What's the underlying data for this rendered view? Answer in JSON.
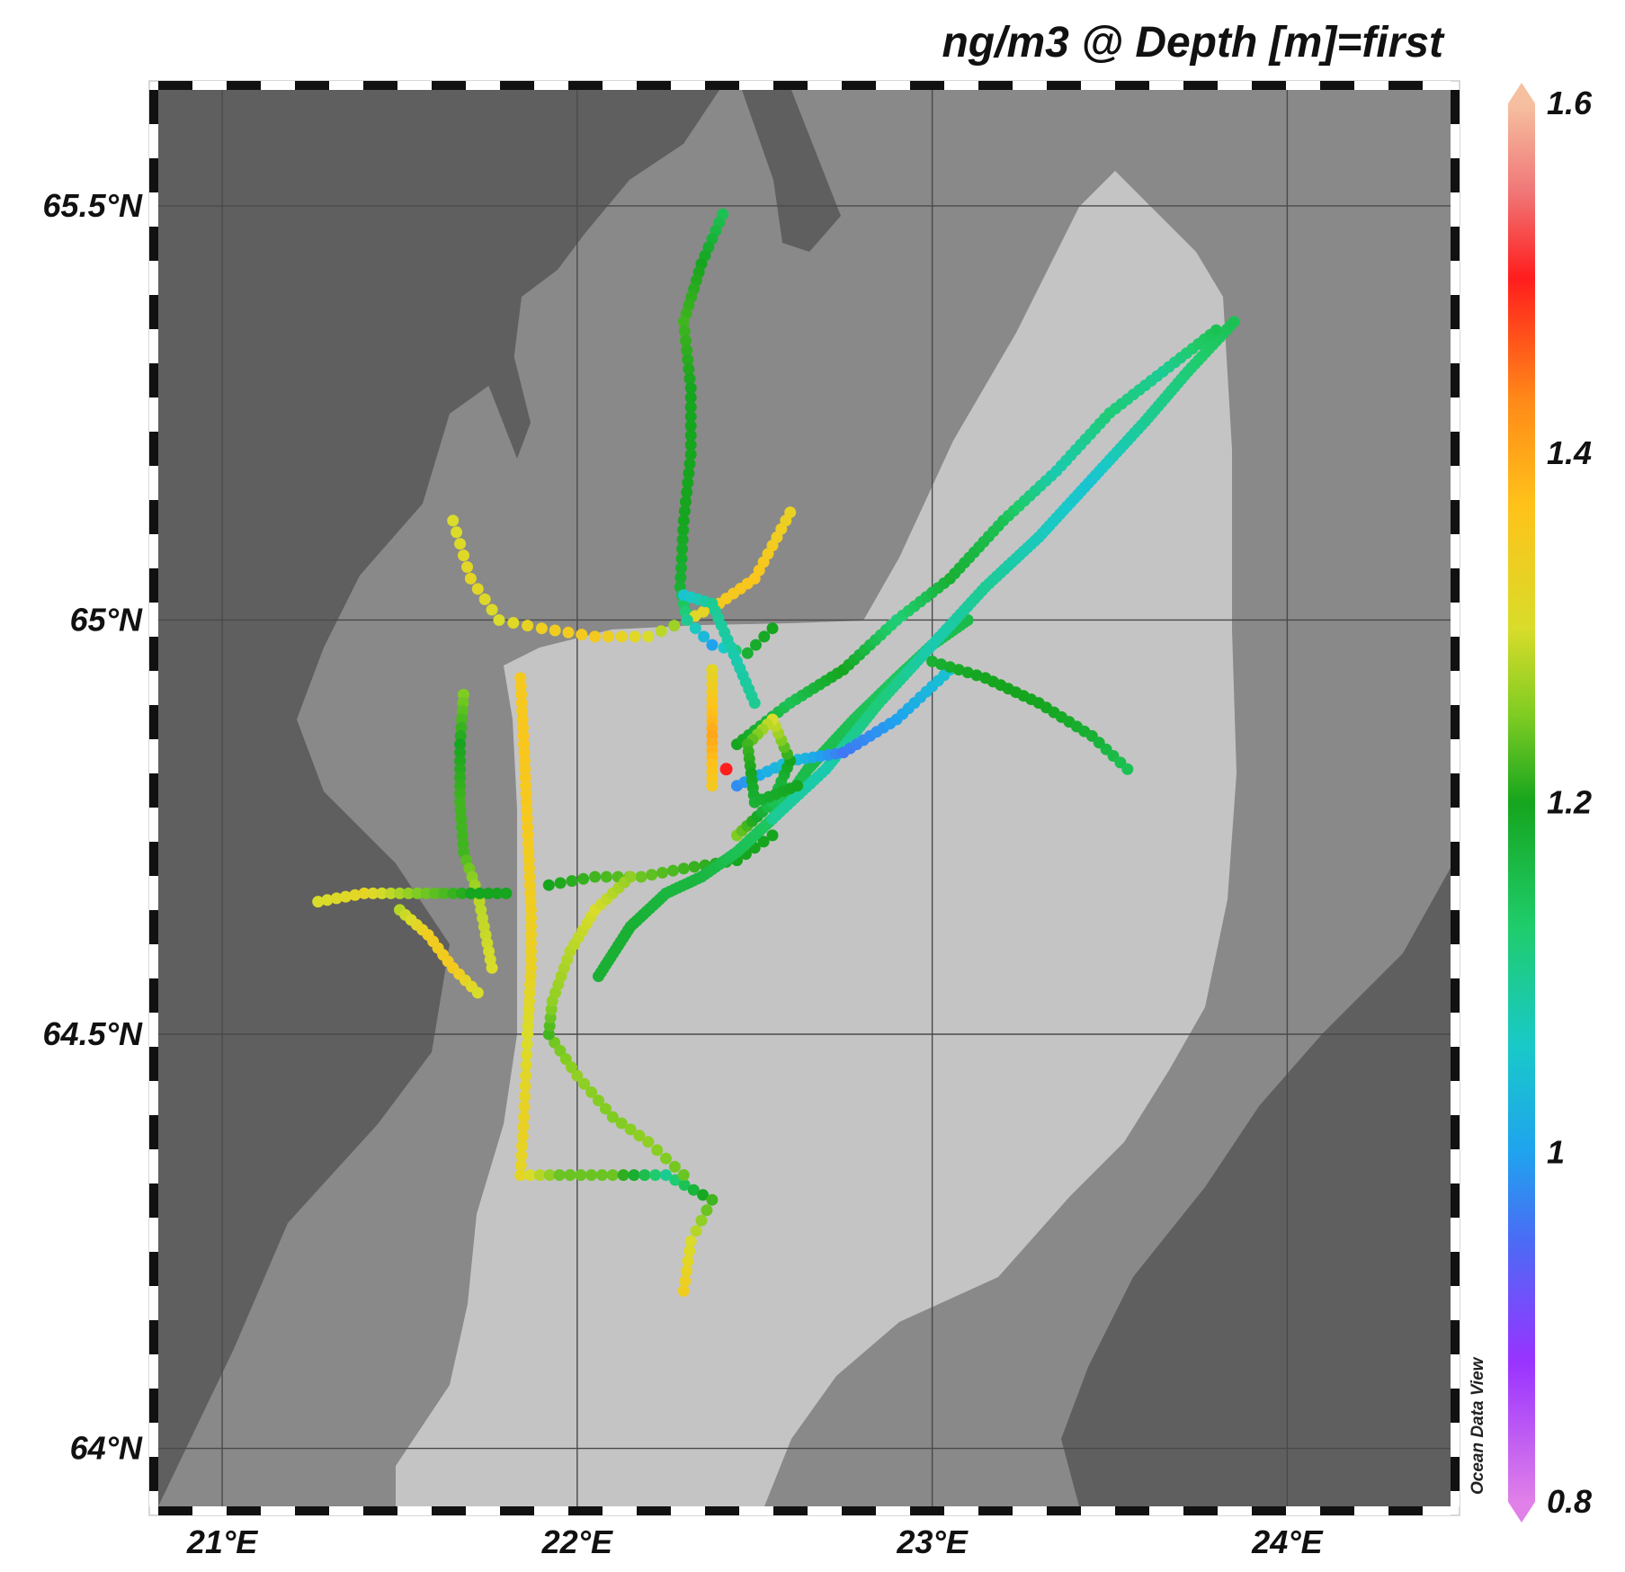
{
  "map": {
    "title": "ng/m3 @ Depth [m]=first",
    "credit": "Ocean Data View",
    "extent": {
      "lon": [
        20.82,
        24.46
      ],
      "lat": [
        63.93,
        65.64
      ]
    },
    "lat_ticks": [
      {
        "value": 65.5,
        "label": "65.5°N"
      },
      {
        "value": 65.0,
        "label": "65°N"
      },
      {
        "value": 64.5,
        "label": "64.5°N"
      },
      {
        "value": 64.0,
        "label": "64°N"
      }
    ],
    "lon_ticks": [
      {
        "value": 21,
        "label": "21°E"
      },
      {
        "value": 22,
        "label": "22°E"
      },
      {
        "value": 23,
        "label": "23°E"
      },
      {
        "value": 24,
        "label": "24°E"
      }
    ],
    "colorbar": {
      "min": 0.8,
      "max": 1.6,
      "ticks": [
        {
          "value": 1.6,
          "label": "1.6"
        },
        {
          "value": 1.4,
          "label": "1.4"
        },
        {
          "value": 1.2,
          "label": "1.2"
        },
        {
          "value": 1.0,
          "label": "1"
        },
        {
          "value": 0.8,
          "label": "0.8"
        }
      ],
      "stops": [
        {
          "value": 0.8,
          "color": "#e080e8"
        },
        {
          "value": 0.88,
          "color": "#9933ff"
        },
        {
          "value": 0.95,
          "color": "#4a6cf5"
        },
        {
          "value": 1.0,
          "color": "#1fa3ee"
        },
        {
          "value": 1.06,
          "color": "#19c9c9"
        },
        {
          "value": 1.13,
          "color": "#1fcc6a"
        },
        {
          "value": 1.2,
          "color": "#16a51e"
        },
        {
          "value": 1.25,
          "color": "#7fcc22"
        },
        {
          "value": 1.3,
          "color": "#d9dc2a"
        },
        {
          "value": 1.37,
          "color": "#ffc21a"
        },
        {
          "value": 1.43,
          "color": "#ff8a18"
        },
        {
          "value": 1.5,
          "color": "#ff1d1d"
        },
        {
          "value": 1.55,
          "color": "#f07878"
        },
        {
          "value": 1.6,
          "color": "#f6c0a0"
        }
      ]
    },
    "colors": {
      "deep": "#5f5f5f",
      "mid": "#898989",
      "shallow": "#c4c4c4",
      "grid": "#4a4a4a"
    },
    "transects": [
      {
        "points": [
          [
            22.41,
            65.49
          ],
          [
            22.35,
            65.43
          ],
          [
            22.3,
            65.36
          ],
          [
            22.32,
            65.28
          ],
          [
            22.32,
            65.2
          ],
          [
            22.3,
            65.12
          ],
          [
            22.29,
            65.04
          ],
          [
            22.31,
            65.0
          ]
        ],
        "values": [
          1.15,
          1.2,
          1.22,
          1.2,
          1.2,
          1.2,
          1.18,
          1.1
        ],
        "step": 0.024
      },
      {
        "points": [
          [
            21.65,
            65.12
          ],
          [
            21.7,
            65.05
          ],
          [
            21.78,
            65.0
          ],
          [
            21.9,
            64.99
          ],
          [
            22.05,
            64.98
          ],
          [
            22.2,
            64.98
          ],
          [
            22.31,
            65.0
          ]
        ],
        "values": [
          1.3,
          1.32,
          1.3,
          1.34,
          1.35,
          1.3,
          1.25
        ],
        "step": 0.035
      },
      {
        "points": [
          [
            22.6,
            65.13
          ],
          [
            22.5,
            65.05
          ],
          [
            22.4,
            65.02
          ],
          [
            22.31,
            65.0
          ]
        ],
        "values": [
          1.33,
          1.36,
          1.35,
          1.3
        ],
        "step": 0.026
      },
      {
        "points": [
          [
            22.31,
            65.0
          ],
          [
            22.38,
            64.97
          ],
          [
            22.48,
            64.96
          ],
          [
            22.55,
            64.99
          ]
        ],
        "values": [
          1.1,
          1.0,
          1.18,
          1.2
        ],
        "step": 0.03
      },
      {
        "points": [
          [
            21.84,
            64.93
          ],
          [
            21.85,
            64.85
          ],
          [
            21.86,
            64.75
          ],
          [
            21.87,
            64.65
          ],
          [
            21.87,
            64.58
          ],
          [
            21.86,
            64.5
          ]
        ],
        "values": [
          1.35,
          1.36,
          1.35,
          1.34,
          1.33,
          1.3
        ],
        "step": 0.022
      },
      {
        "points": [
          [
            22.38,
            64.94
          ],
          [
            22.38,
            64.86
          ],
          [
            22.38,
            64.8
          ]
        ],
        "values": [
          1.32,
          1.4,
          1.35
        ],
        "step": 0.02
      },
      {
        "points": [
          [
            21.68,
            64.91
          ],
          [
            21.67,
            64.85
          ],
          [
            21.67,
            64.78
          ],
          [
            21.68,
            64.72
          ],
          [
            21.72,
            64.67
          ],
          [
            21.76,
            64.58
          ]
        ],
        "values": [
          1.25,
          1.2,
          1.22,
          1.22,
          1.28,
          1.3
        ],
        "step": 0.022
      },
      {
        "points": [
          [
            21.27,
            64.66
          ],
          [
            21.4,
            64.67
          ],
          [
            21.55,
            64.67
          ],
          [
            21.7,
            64.67
          ],
          [
            21.8,
            64.67
          ]
        ],
        "values": [
          1.3,
          1.32,
          1.25,
          1.2,
          1.2
        ],
        "step": 0.024
      },
      {
        "points": [
          [
            21.5,
            64.65
          ],
          [
            21.58,
            64.62
          ],
          [
            21.65,
            64.58
          ],
          [
            21.72,
            64.55
          ]
        ],
        "values": [
          1.28,
          1.34,
          1.35,
          1.3
        ],
        "step": 0.022
      },
      {
        "points": [
          [
            21.92,
            64.68
          ],
          [
            22.05,
            64.69
          ],
          [
            22.18,
            64.69
          ],
          [
            22.3,
            64.7
          ],
          [
            22.45,
            64.71
          ],
          [
            22.55,
            64.74
          ]
        ],
        "values": [
          1.2,
          1.22,
          1.24,
          1.22,
          1.2,
          1.2
        ],
        "step": 0.03
      },
      {
        "points": [
          [
            21.86,
            64.5
          ],
          [
            21.85,
            64.4
          ],
          [
            21.84,
            64.33
          ],
          [
            21.95,
            64.33
          ],
          [
            22.1,
            64.33
          ],
          [
            22.25,
            64.33
          ],
          [
            22.38,
            64.3
          ],
          [
            22.32,
            64.25
          ],
          [
            22.3,
            64.19
          ]
        ],
        "values": [
          1.3,
          1.33,
          1.32,
          1.24,
          1.24,
          1.1,
          1.22,
          1.3,
          1.34
        ],
        "step": 0.028
      },
      {
        "points": [
          [
            21.92,
            64.5
          ],
          [
            22.0,
            64.45
          ],
          [
            22.1,
            64.4
          ],
          [
            22.2,
            64.37
          ],
          [
            22.3,
            64.33
          ]
        ],
        "values": [
          1.24,
          1.26,
          1.25,
          1.26,
          1.24
        ],
        "step": 0.03
      },
      {
        "points": [
          [
            21.92,
            64.5
          ],
          [
            21.93,
            64.54
          ],
          [
            21.98,
            64.6
          ],
          [
            22.05,
            64.65
          ],
          [
            22.15,
            64.69
          ]
        ],
        "values": [
          1.22,
          1.26,
          1.28,
          1.3,
          1.26
        ],
        "step": 0.022
      },
      {
        "points": [
          [
            22.06,
            64.57
          ],
          [
            22.15,
            64.63
          ],
          [
            22.25,
            64.67
          ],
          [
            22.35,
            64.69
          ],
          [
            22.45,
            64.72
          ],
          [
            22.55,
            64.76
          ],
          [
            22.65,
            64.82
          ],
          [
            22.78,
            64.88
          ],
          [
            22.9,
            64.93
          ],
          [
            23.0,
            64.97
          ],
          [
            23.1,
            65.0
          ]
        ],
        "values": [
          1.18,
          1.18,
          1.17,
          1.17,
          1.15,
          1.14,
          1.16,
          1.15,
          1.14,
          1.15,
          1.16
        ],
        "step": 0.012
      },
      {
        "points": [
          [
            22.55,
            64.76
          ],
          [
            22.7,
            64.82
          ],
          [
            22.85,
            64.9
          ],
          [
            23.0,
            64.97
          ],
          [
            23.15,
            65.04
          ],
          [
            23.3,
            65.1
          ],
          [
            23.45,
            65.17
          ],
          [
            23.6,
            65.24
          ],
          [
            23.72,
            65.3
          ],
          [
            23.85,
            65.36
          ]
        ],
        "values": [
          1.1,
          1.08,
          1.12,
          1.08,
          1.1,
          1.07,
          1.05,
          1.1,
          1.12,
          1.15
        ],
        "step": 0.014
      },
      {
        "points": [
          [
            22.45,
            64.8
          ],
          [
            22.6,
            64.83
          ],
          [
            22.75,
            64.84
          ],
          [
            22.9,
            64.88
          ],
          [
            23.05,
            64.94
          ]
        ],
        "values": [
          0.98,
          1.05,
          0.96,
          1.0,
          1.05
        ],
        "step": 0.022
      },
      {
        "points": [
          [
            22.45,
            64.85
          ],
          [
            22.6,
            64.9
          ],
          [
            22.75,
            64.94
          ],
          [
            22.9,
            65.0
          ],
          [
            23.05,
            65.05
          ],
          [
            23.2,
            65.12
          ],
          [
            23.35,
            65.18
          ],
          [
            23.5,
            65.25
          ],
          [
            23.65,
            65.3
          ],
          [
            23.8,
            65.35
          ]
        ],
        "values": [
          1.2,
          1.15,
          1.2,
          1.12,
          1.18,
          1.15,
          1.08,
          1.12,
          1.1,
          1.15
        ],
        "step": 0.02
      },
      {
        "points": [
          [
            22.45,
            64.74
          ],
          [
            22.55,
            64.78
          ],
          [
            22.6,
            64.83
          ],
          [
            22.55,
            64.88
          ],
          [
            22.48,
            64.85
          ],
          [
            22.5,
            64.78
          ],
          [
            22.62,
            64.8
          ]
        ],
        "values": [
          1.25,
          1.15,
          1.2,
          1.3,
          1.22,
          1.18,
          1.2
        ],
        "step": 0.02
      },
      {
        "points": [
          [
            23.0,
            64.95
          ],
          [
            23.15,
            64.93
          ],
          [
            23.3,
            64.9
          ],
          [
            23.45,
            64.86
          ],
          [
            23.55,
            64.82
          ]
        ],
        "values": [
          1.18,
          1.2,
          1.2,
          1.18,
          1.15
        ],
        "step": 0.025
      },
      {
        "points": [
          [
            22.3,
            65.03
          ],
          [
            22.38,
            65.02
          ],
          [
            22.45,
            64.95
          ],
          [
            22.5,
            64.9
          ]
        ],
        "values": [
          1.05,
          1.1,
          1.08,
          1.1
        ],
        "step": 0.02
      }
    ],
    "highlights": [
      {
        "point": [
          22.42,
          64.82
        ],
        "value": 1.5
      }
    ]
  }
}
